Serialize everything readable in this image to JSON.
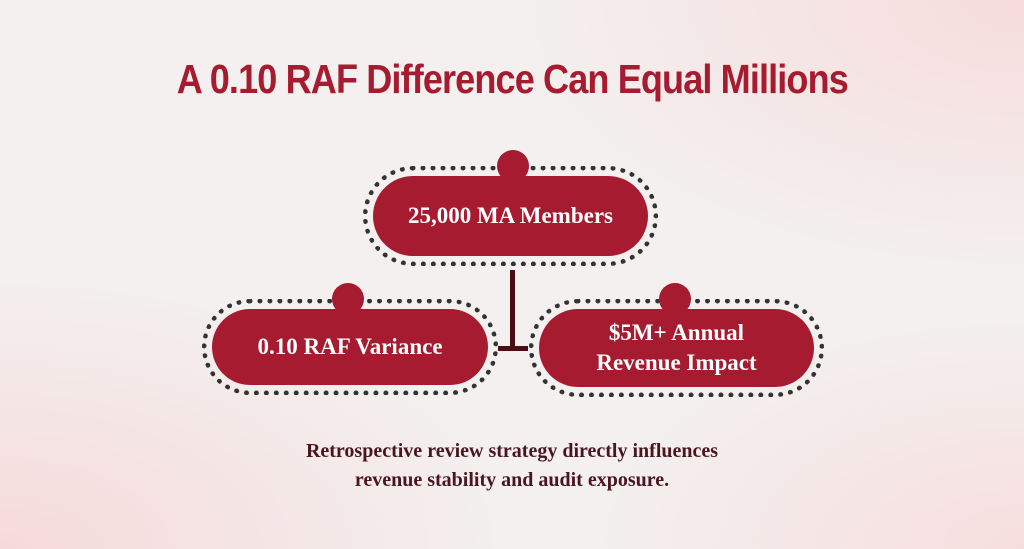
{
  "title": "A 0.10 RAF Difference Can Equal Millions",
  "nodes": {
    "top": "25,000 MA Members",
    "left": "0.10 RAF Variance",
    "right_line1": "$5M+ Annual",
    "right_line2": "Revenue Impact"
  },
  "caption": {
    "line1": "Retrospective review strategy directly influences",
    "line2": "revenue stability and audit exposure."
  },
  "colors": {
    "accent": "#a61b2f",
    "connector": "#4a0d16",
    "caption_text": "#4a1520"
  }
}
